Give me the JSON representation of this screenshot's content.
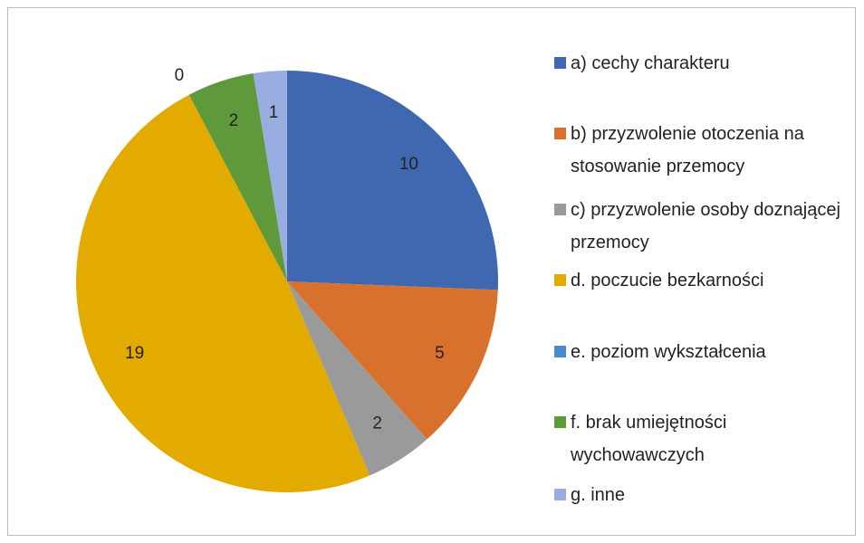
{
  "chart_data": {
    "type": "pie",
    "categories": [
      "a) cechy charakteru",
      "b) przyzwolenie otoczenia na stosowanie przemocy",
      "c) przyzwolenie osoby doznającej przemocy",
      "d. poczucie bezkarności",
      "e. poziom wykształcenia",
      "f. brak umiejętności wychowawczych",
      "g. inne"
    ],
    "values": [
      10,
      5,
      2,
      19,
      0,
      2,
      1
    ],
    "colors": [
      "#4068b0",
      "#d9712e",
      "#9a9a9a",
      "#e3aa00",
      "#4a8ac8",
      "#5e9a3c",
      "#9aade0"
    ],
    "legend": "right"
  }
}
